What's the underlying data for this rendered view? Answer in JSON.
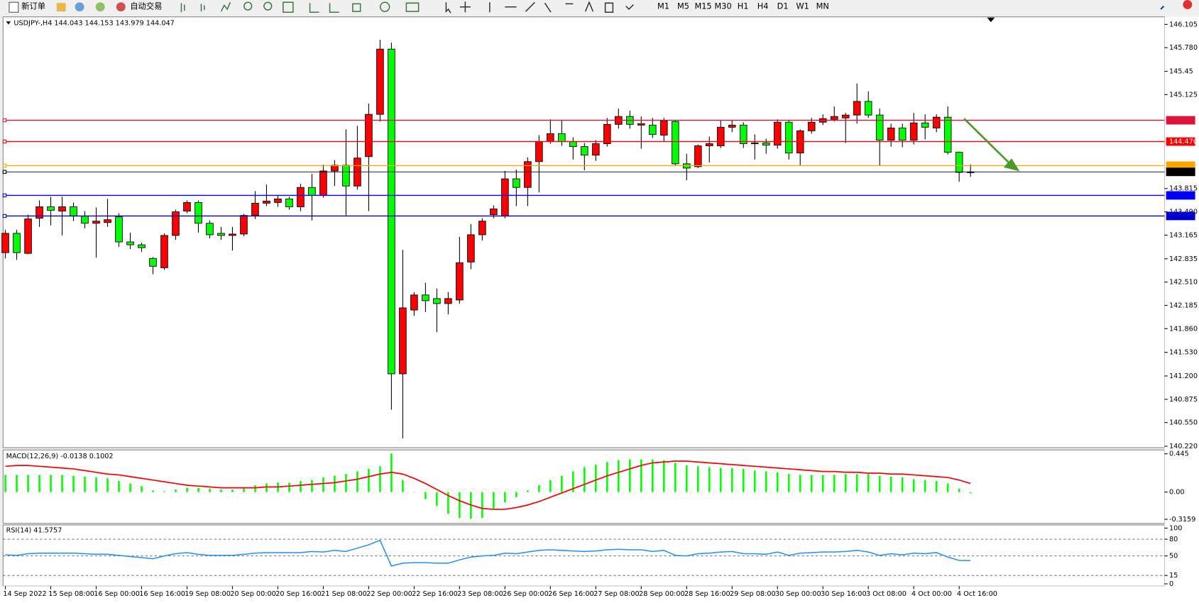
{
  "toolbar": {
    "new_order": "新订单",
    "auto_trading": "自动交易",
    "timeframes": [
      "M1",
      "M5",
      "M15",
      "M30",
      "H1",
      "H4",
      "D1",
      "W1",
      "MN"
    ]
  },
  "main": {
    "header": "USDJPY-,H4  144.043 144.153 143.979 144.047",
    "ylim": [
      140.2,
      146.21
    ],
    "yticks": [
      146.105,
      {
        "value": 145.78,
        "label": "145.780"
      },
      145.45,
      145.125,
      143.815,
      {
        "value": 143.49,
        "label": "143.490"
      },
      143.165,
      142.835,
      {
        "value": 142.51,
        "label": "142.510"
      },
      142.185,
      {
        "value": 141.86,
        "label": "141.860"
      },
      {
        "value": 141.53,
        "label": "141.530"
      },
      {
        "value": 141.2,
        "label": "141.200"
      },
      140.875,
      {
        "value": 140.55,
        "label": "140.550"
      },
      {
        "value": 140.22,
        "label": "140.220"
      }
    ],
    "up_color": "#ff0000",
    "down_color": "#00ff00",
    "candles": {
      "open": [
        142.92,
        143.19,
        142.91,
        143.4,
        143.56,
        143.5,
        143.56,
        143.43,
        143.33,
        143.34,
        143.42,
        143.07,
        143.03,
        142.84,
        142.71,
        143.16,
        143.5,
        143.62,
        143.33,
        143.19,
        143.16,
        143.18,
        143.44,
        143.61,
        143.62,
        143.67,
        143.56,
        143.83,
        143.72,
        144.06,
        144.14,
        143.85,
        144.26,
        144.85,
        145.76,
        141.23,
        142.12,
        142.33,
        142.28,
        142.21,
        142.26,
        142.79,
        143.17,
        143.45,
        143.43,
        143.95,
        143.83,
        144.19,
        144.47,
        144.58,
        144.47,
        144.4,
        144.28,
        144.44,
        144.71,
        144.82,
        144.7,
        144.7,
        144.56,
        144.75,
        144.16,
        144.12,
        144.41,
        144.41,
        144.67,
        144.7,
        144.44,
        144.45,
        144.42,
        144.74,
        144.31,
        144.62,
        144.74,
        144.78,
        144.8,
        144.84,
        145.03,
        144.84,
        144.49,
        144.66,
        144.49,
        144.73,
        144.66,
        144.81,
        144.32,
        144.043
      ],
      "high": [
        143.24,
        143.24,
        143.45,
        143.65,
        143.7,
        143.7,
        143.62,
        143.5,
        143.55,
        143.67,
        143.47,
        143.2,
        143.06,
        142.86,
        143.19,
        143.52,
        143.65,
        143.65,
        143.37,
        143.28,
        143.28,
        143.46,
        143.78,
        143.87,
        143.72,
        143.7,
        143.88,
        144.02,
        144.15,
        144.21,
        144.64,
        144.69,
        145.0,
        145.89,
        145.85,
        142.96,
        142.37,
        142.5,
        142.42,
        142.37,
        143.14,
        143.32,
        143.4,
        143.58,
        144.06,
        144.08,
        144.25,
        144.56,
        144.78,
        144.77,
        144.53,
        144.45,
        144.49,
        144.8,
        144.93,
        144.9,
        144.82,
        144.8,
        144.8,
        144.77,
        144.3,
        144.43,
        144.54,
        144.76,
        144.77,
        144.74,
        144.57,
        144.51,
        144.78,
        144.77,
        144.64,
        144.8,
        144.85,
        144.96,
        144.87,
        145.28,
        145.17,
        144.93,
        144.72,
        144.72,
        144.87,
        144.85,
        144.85,
        144.96,
        144.33,
        144.153
      ],
      "low": [
        142.84,
        142.82,
        142.9,
        143.28,
        143.3,
        143.16,
        143.36,
        143.26,
        142.85,
        143.28,
        143.0,
        142.97,
        142.93,
        142.62,
        142.68,
        143.1,
        143.47,
        143.2,
        143.12,
        143.1,
        142.95,
        143.15,
        143.39,
        143.57,
        143.56,
        143.52,
        143.5,
        143.37,
        143.69,
        143.85,
        143.44,
        143.8,
        143.5,
        144.75,
        140.73,
        140.33,
        142.04,
        142.09,
        141.81,
        142.06,
        142.21,
        142.69,
        143.09,
        143.4,
        143.4,
        143.57,
        143.57,
        143.76,
        144.44,
        144.41,
        144.22,
        144.07,
        144.2,
        144.4,
        144.65,
        144.65,
        144.37,
        144.52,
        144.47,
        144.14,
        143.93,
        144.1,
        144.18,
        144.38,
        144.6,
        144.38,
        144.22,
        144.3,
        144.37,
        144.22,
        144.14,
        144.58,
        144.7,
        144.75,
        144.45,
        144.72,
        144.8,
        144.13,
        144.4,
        144.39,
        144.43,
        144.5,
        144.6,
        144.29,
        143.91,
        143.979
      ],
      "close": [
        143.19,
        142.92,
        143.39,
        143.56,
        143.51,
        143.56,
        143.43,
        143.33,
        143.36,
        143.38,
        143.07,
        143.03,
        142.99,
        142.73,
        143.16,
        143.49,
        143.62,
        143.33,
        143.17,
        143.16,
        143.18,
        143.44,
        143.61,
        143.64,
        143.67,
        143.56,
        143.83,
        143.72,
        144.06,
        144.14,
        143.85,
        144.24,
        144.85,
        145.76,
        141.23,
        142.15,
        142.33,
        142.25,
        142.21,
        142.28,
        142.78,
        143.17,
        143.36,
        143.53,
        143.95,
        143.83,
        144.19,
        144.47,
        144.58,
        144.47,
        144.4,
        144.28,
        144.44,
        144.71,
        144.82,
        144.71,
        144.72,
        144.57,
        144.76,
        144.16,
        144.1,
        144.41,
        144.44,
        144.67,
        144.7,
        144.44,
        144.45,
        144.42,
        144.74,
        144.31,
        144.62,
        144.74,
        144.79,
        144.82,
        144.84,
        145.03,
        144.84,
        144.49,
        144.66,
        144.49,
        144.73,
        144.67,
        144.81,
        144.32,
        144.04,
        144.047
      ]
    },
    "levels": [
      {
        "value": 144.767,
        "color": "#dc143c"
      },
      {
        "value": 144.47,
        "label": "144.470",
        "color": "#ff0000"
      },
      {
        "value": 144.134,
        "color": "#ffa500"
      },
      {
        "value": 144.047,
        "color": "#000000"
      },
      {
        "value": 143.719,
        "color": "#0000ff"
      },
      {
        "value": 143.432,
        "color": "#0000cd"
      }
    ]
  },
  "macd": {
    "title": "MACD(12,26,9) -0.0138 0.1002",
    "ylim": [
      -0.364,
      0.49
    ],
    "yticks": [
      0.445,
      {
        "value": 0,
        "label": "0.00"
      },
      -0.3159
    ],
    "histogram_color": "#00ff00",
    "signal_color": "#ff0000",
    "histogram": [
      0.2,
      0.2,
      0.2,
      0.2,
      0.2,
      0.2,
      0.19,
      0.18,
      0.17,
      0.16,
      0.13,
      0.1,
      0.07,
      0.02,
      0.01,
      0.03,
      0.05,
      0.05,
      0.04,
      0.03,
      0.03,
      0.05,
      0.08,
      0.1,
      0.11,
      0.11,
      0.13,
      0.14,
      0.17,
      0.19,
      0.21,
      0.24,
      0.27,
      0.3,
      0.45,
      0.14,
      0.0,
      -0.08,
      -0.16,
      -0.25,
      -0.3,
      -0.31,
      -0.3,
      -0.2,
      -0.12,
      -0.06,
      0.02,
      0.08,
      0.14,
      0.19,
      0.24,
      0.29,
      0.32,
      0.35,
      0.37,
      0.38,
      0.38,
      0.38,
      0.37,
      0.34,
      0.31,
      0.3,
      0.29,
      0.28,
      0.28,
      0.27,
      0.25,
      0.24,
      0.23,
      0.21,
      0.2,
      0.2,
      0.2,
      0.2,
      0.21,
      0.21,
      0.21,
      0.19,
      0.18,
      0.17,
      0.15,
      0.14,
      0.13,
      0.1,
      0.04,
      -0.0138
    ],
    "signal": [
      0.3,
      0.31,
      0.31,
      0.3,
      0.29,
      0.28,
      0.27,
      0.25,
      0.23,
      0.21,
      0.2,
      0.18,
      0.16,
      0.14,
      0.12,
      0.1,
      0.08,
      0.07,
      0.06,
      0.05,
      0.05,
      0.05,
      0.05,
      0.06,
      0.06,
      0.07,
      0.08,
      0.09,
      0.1,
      0.11,
      0.13,
      0.15,
      0.18,
      0.21,
      0.23,
      0.21,
      0.16,
      0.1,
      0.03,
      -0.04,
      -0.1,
      -0.15,
      -0.19,
      -0.2,
      -0.2,
      -0.18,
      -0.15,
      -0.11,
      -0.06,
      -0.01,
      0.04,
      0.09,
      0.14,
      0.19,
      0.23,
      0.27,
      0.31,
      0.34,
      0.35,
      0.36,
      0.36,
      0.35,
      0.34,
      0.33,
      0.32,
      0.31,
      0.3,
      0.29,
      0.28,
      0.27,
      0.26,
      0.25,
      0.24,
      0.24,
      0.23,
      0.23,
      0.22,
      0.22,
      0.21,
      0.21,
      0.2,
      0.19,
      0.18,
      0.17,
      0.14,
      0.1002
    ]
  },
  "rsi": {
    "title": "RSI(14) 41.5757",
    "ylim": [
      -4.2,
      105.6
    ],
    "yticks": [
      100,
      80,
      50,
      15,
      0
    ],
    "levels": [
      80,
      50,
      15
    ],
    "color": "#1e90ff",
    "values": [
      52,
      51,
      54,
      55,
      55,
      55,
      55,
      54,
      53,
      53,
      51,
      49,
      47,
      45,
      50,
      54,
      56,
      53,
      51,
      51,
      51,
      53,
      55,
      56,
      56,
      56,
      56,
      58,
      57,
      60,
      58,
      64,
      70,
      78,
      32,
      37,
      38,
      38,
      37,
      37,
      43,
      48,
      50,
      51,
      55,
      54,
      57,
      60,
      61,
      60,
      59,
      58,
      59,
      61,
      62,
      61,
      61,
      58,
      60,
      51,
      50,
      54,
      55,
      57,
      58,
      54,
      54,
      53,
      57,
      51,
      55,
      56,
      57,
      57,
      58,
      60,
      57,
      51,
      54,
      52,
      55,
      54,
      56,
      48,
      42,
      41.5757
    ]
  },
  "time_axis": {
    "labels": [
      "14 Sep 2022",
      "15 Sep 08:00",
      "16 Sep 00:00",
      "16 Sep 16:00",
      "19 Sep 08:00",
      "20 Sep 00:00",
      "20 Sep 16:00",
      "21 Sep 08:00",
      "22 Sep 00:00",
      "22 Sep 16:00",
      "23 Sep 08:00",
      "26 Sep 00:00",
      "26 Sep 16:00",
      "27 Sep 08:00",
      "28 Sep 00:00",
      "28 Sep 16:00",
      "29 Sep 08:00",
      "30 Sep 00:00",
      "30 Sep 16:00",
      "3 Oct 08:00",
      "4 Oct 00:00",
      "4 Oct 16:00"
    ]
  }
}
